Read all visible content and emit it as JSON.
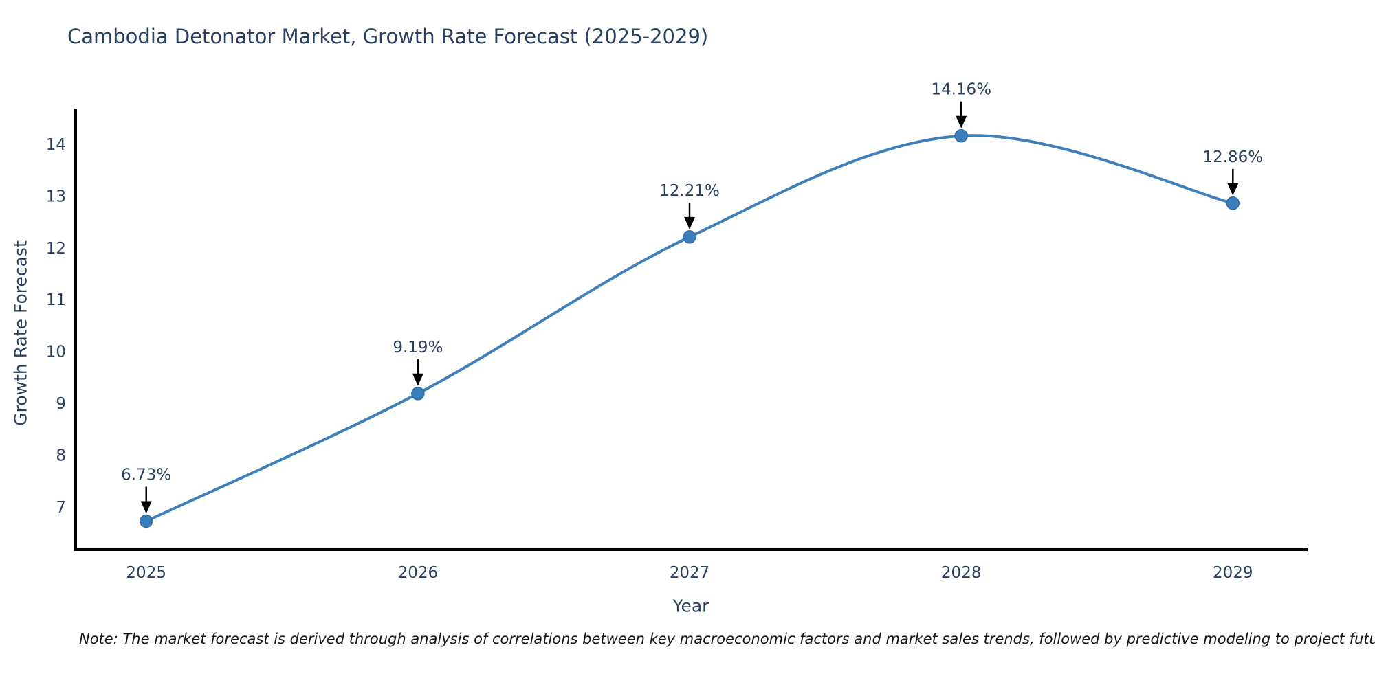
{
  "page": {
    "title": "Cambodia Detonator Market, Growth Rate Forecast (2025-2029)",
    "note": "Note: The market forecast is derived through analysis of correlations between key macroeconomic factors and market sales trends, followed by predictive modeling to project future sales"
  },
  "chart_data": {
    "type": "line",
    "title": "Cambodia Detonator Market, Growth Rate Forecast (2025-2029)",
    "xlabel": "Year",
    "ylabel": "Growth Rate Forecast",
    "x": [
      2025,
      2026,
      2027,
      2028,
      2029
    ],
    "values": [
      6.73,
      9.19,
      12.21,
      14.16,
      12.86
    ],
    "point_labels": [
      "6.73%",
      "9.19%",
      "12.21%",
      "14.16%",
      "12.86%"
    ],
    "yticks": [
      7,
      8,
      9,
      10,
      11,
      12,
      13,
      14
    ],
    "xticks": [
      2025,
      2026,
      2027,
      2028,
      2029
    ],
    "xlim": [
      2024.74,
      2029.27
    ],
    "ylim": [
      6.18,
      14.66
    ],
    "line_shape": "spline",
    "grid": false,
    "legend": "none",
    "annotation_arrows": true,
    "colors": {
      "line": "#3f7fba",
      "marker_fill": "#3a7ebd",
      "marker_edge": "#2f6ba3",
      "arrow": "#000000",
      "label_text": "#2a3f5f",
      "tick_text": "#2a3f5f",
      "axis_line": "#000000",
      "background": "#ffffff"
    }
  }
}
